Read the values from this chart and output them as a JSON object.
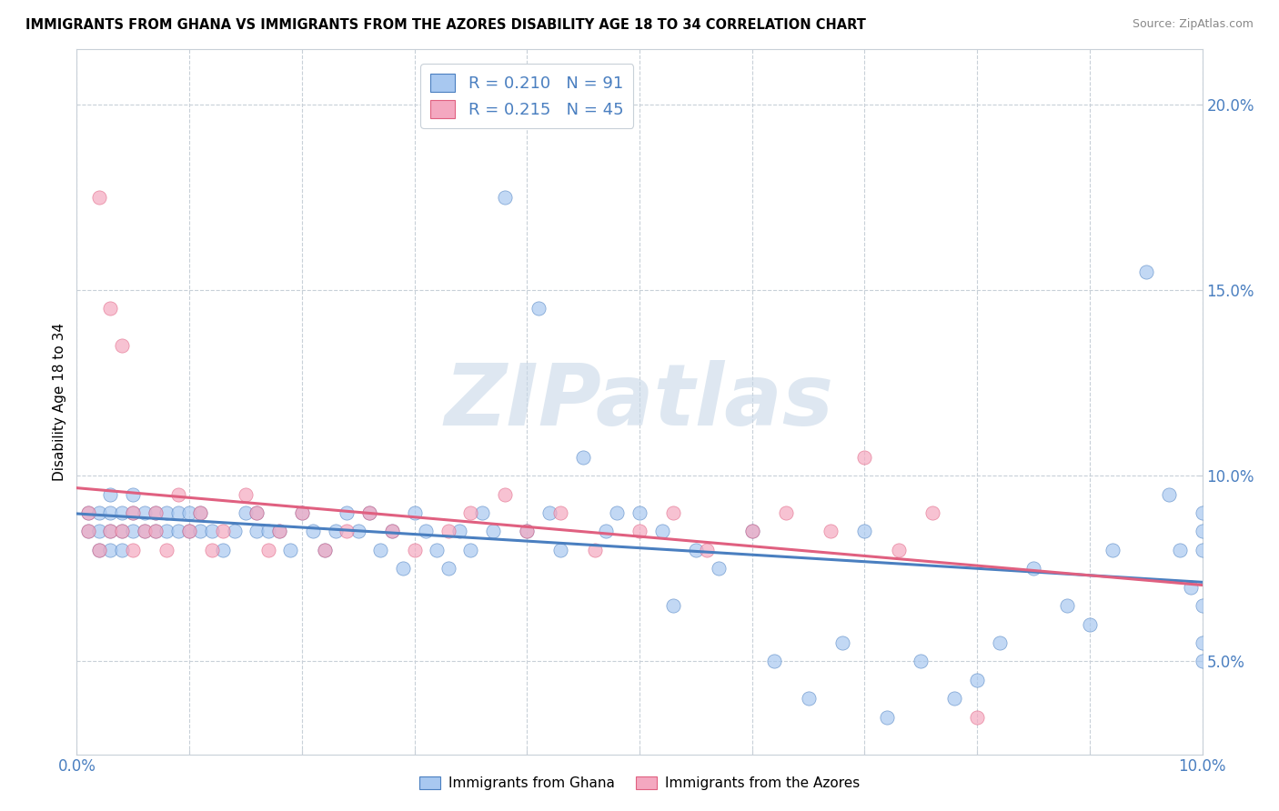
{
  "title": "IMMIGRANTS FROM GHANA VS IMMIGRANTS FROM THE AZORES DISABILITY AGE 18 TO 34 CORRELATION CHART",
  "source": "Source: ZipAtlas.com",
  "ylabel": "Disability Age 18 to 34",
  "r_ghana": 0.21,
  "n_ghana": 91,
  "r_azores": 0.215,
  "n_azores": 45,
  "color_ghana": "#a8c8f0",
  "color_azores": "#f4a8c0",
  "color_line_ghana": "#4a7fc0",
  "color_line_azores": "#e06080",
  "watermark": "ZIPatlas",
  "watermark_color": "#c8d8e8",
  "xlim": [
    0.0,
    0.1
  ],
  "ylim": [
    0.025,
    0.215
  ],
  "ytick_positions": [
    0.05,
    0.1,
    0.15,
    0.2
  ],
  "ytick_labels": [
    "5.0%",
    "10.0%",
    "15.0%",
    "20.0%"
  ],
  "xtick_positions": [
    0.0,
    0.01,
    0.02,
    0.03,
    0.04,
    0.05,
    0.06,
    0.07,
    0.08,
    0.09,
    0.1
  ],
  "xtick_show": [
    0.0,
    0.1
  ],
  "grid_color": "#c8d0d8",
  "grid_style": "--",
  "bg_color": "#ffffff",
  "legend_r_color": "#4a7fc0",
  "legend_n_color": "#e06080",
  "ghana_x": [
    0.001,
    0.001,
    0.002,
    0.002,
    0.002,
    0.003,
    0.003,
    0.003,
    0.003,
    0.004,
    0.004,
    0.004,
    0.005,
    0.005,
    0.005,
    0.006,
    0.006,
    0.007,
    0.007,
    0.008,
    0.008,
    0.009,
    0.009,
    0.01,
    0.01,
    0.011,
    0.011,
    0.012,
    0.013,
    0.014,
    0.015,
    0.016,
    0.016,
    0.017,
    0.018,
    0.019,
    0.02,
    0.021,
    0.022,
    0.023,
    0.024,
    0.025,
    0.026,
    0.027,
    0.028,
    0.029,
    0.03,
    0.031,
    0.032,
    0.033,
    0.034,
    0.035,
    0.036,
    0.037,
    0.038,
    0.04,
    0.041,
    0.042,
    0.043,
    0.045,
    0.047,
    0.048,
    0.05,
    0.052,
    0.053,
    0.055,
    0.057,
    0.06,
    0.062,
    0.065,
    0.068,
    0.07,
    0.072,
    0.075,
    0.078,
    0.08,
    0.082,
    0.085,
    0.088,
    0.09,
    0.092,
    0.095,
    0.097,
    0.098,
    0.099,
    0.1,
    0.1,
    0.1,
    0.1,
    0.1,
    0.1
  ],
  "ghana_y": [
    0.085,
    0.09,
    0.085,
    0.08,
    0.09,
    0.085,
    0.09,
    0.095,
    0.08,
    0.085,
    0.09,
    0.08,
    0.085,
    0.09,
    0.095,
    0.085,
    0.09,
    0.085,
    0.09,
    0.085,
    0.09,
    0.085,
    0.09,
    0.085,
    0.09,
    0.085,
    0.09,
    0.085,
    0.08,
    0.085,
    0.09,
    0.085,
    0.09,
    0.085,
    0.085,
    0.08,
    0.09,
    0.085,
    0.08,
    0.085,
    0.09,
    0.085,
    0.09,
    0.08,
    0.085,
    0.075,
    0.09,
    0.085,
    0.08,
    0.075,
    0.085,
    0.08,
    0.09,
    0.085,
    0.175,
    0.085,
    0.145,
    0.09,
    0.08,
    0.105,
    0.085,
    0.09,
    0.09,
    0.085,
    0.065,
    0.08,
    0.075,
    0.085,
    0.05,
    0.04,
    0.055,
    0.085,
    0.035,
    0.05,
    0.04,
    0.045,
    0.055,
    0.075,
    0.065,
    0.06,
    0.08,
    0.155,
    0.095,
    0.08,
    0.07,
    0.08,
    0.09,
    0.085,
    0.065,
    0.055,
    0.05
  ],
  "azores_x": [
    0.001,
    0.001,
    0.002,
    0.002,
    0.003,
    0.003,
    0.004,
    0.004,
    0.005,
    0.005,
    0.006,
    0.007,
    0.007,
    0.008,
    0.009,
    0.01,
    0.011,
    0.012,
    0.013,
    0.015,
    0.016,
    0.017,
    0.018,
    0.02,
    0.022,
    0.024,
    0.026,
    0.028,
    0.03,
    0.033,
    0.035,
    0.038,
    0.04,
    0.043,
    0.046,
    0.05,
    0.053,
    0.056,
    0.06,
    0.063,
    0.067,
    0.07,
    0.073,
    0.076,
    0.08
  ],
  "azores_y": [
    0.085,
    0.09,
    0.08,
    0.175,
    0.085,
    0.145,
    0.085,
    0.135,
    0.08,
    0.09,
    0.085,
    0.09,
    0.085,
    0.08,
    0.095,
    0.085,
    0.09,
    0.08,
    0.085,
    0.095,
    0.09,
    0.08,
    0.085,
    0.09,
    0.08,
    0.085,
    0.09,
    0.085,
    0.08,
    0.085,
    0.09,
    0.095,
    0.085,
    0.09,
    0.08,
    0.085,
    0.09,
    0.08,
    0.085,
    0.09,
    0.085,
    0.105,
    0.08,
    0.09,
    0.035
  ]
}
